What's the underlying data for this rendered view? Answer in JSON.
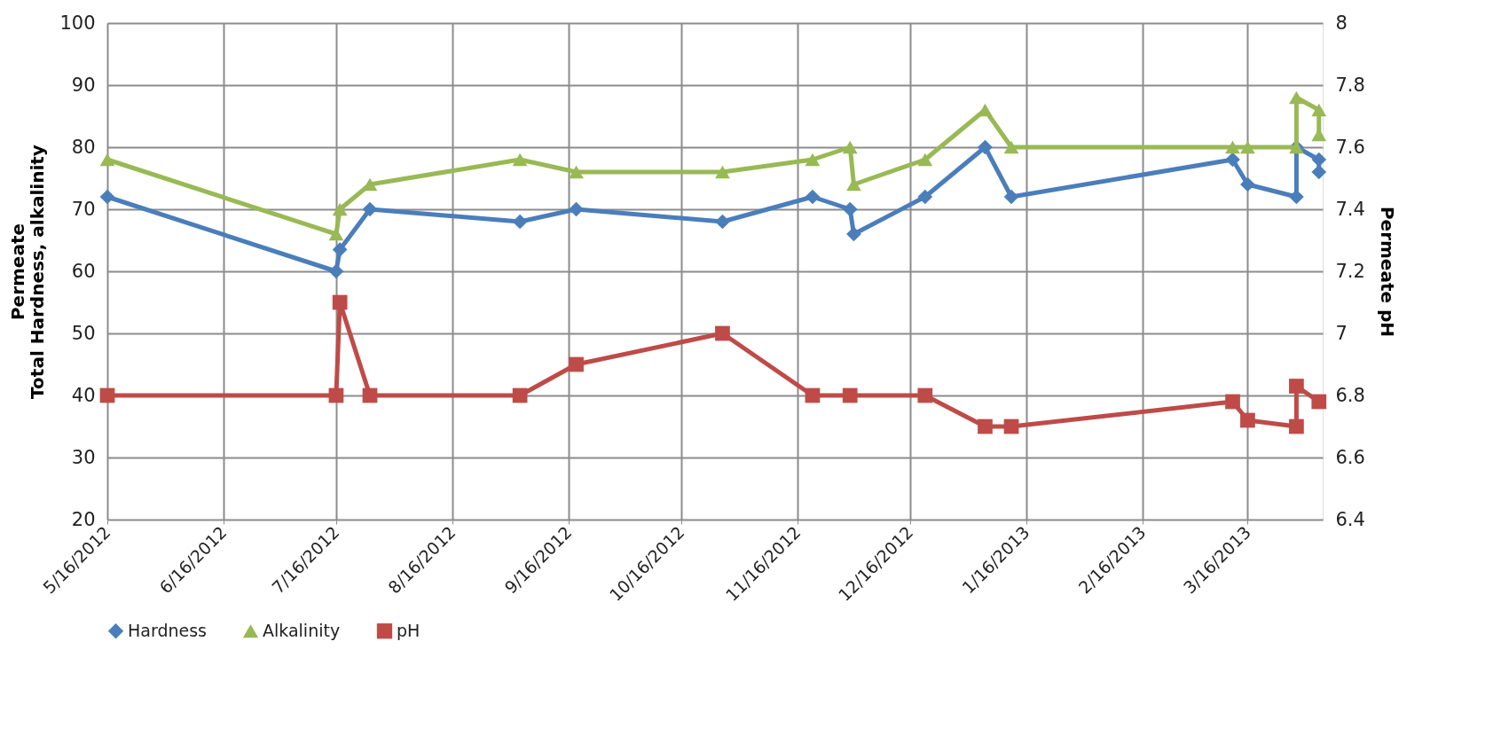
{
  "chart_data": {
    "type": "line",
    "ylabel": "Permeate\nTotal Hardness, alkalinity",
    "y2label": "Permeate pH",
    "x": [
      "2012-05-16",
      "2012-07-16",
      "2012-07-17",
      "2012-07-25",
      "2012-09-03",
      "2012-09-18",
      "2012-10-27",
      "2012-11-20",
      "2012-11-30",
      "2012-12-01",
      "2012-12-20",
      "2013-01-05",
      "2013-01-12",
      "2013-03-12",
      "2013-03-16",
      "2013-03-29",
      "2013-03-29",
      "2013-04-04",
      "2013-04-04"
    ],
    "series": [
      {
        "name": "Hardness",
        "color": "#4a7ebb",
        "marker": "diamond",
        "values": [
          72,
          60,
          63.5,
          70,
          68,
          70,
          68,
          72,
          70,
          66,
          72,
          80,
          72,
          78,
          74,
          72,
          80,
          78,
          76
        ]
      },
      {
        "name": "Alkalinity",
        "color": "#98b954",
        "marker": "triangle",
        "values": [
          78,
          66,
          70,
          74,
          78,
          76,
          76,
          78,
          80,
          74,
          78,
          86,
          80,
          80,
          80,
          80,
          88,
          86,
          82
        ]
      },
      {
        "name": "pH",
        "color": "#be4b48",
        "marker": "square",
        "axis": "y2",
        "values": [
          6.8,
          6.8,
          7.1,
          6.8,
          6.8,
          6.9,
          7.0,
          6.8,
          6.8,
          null,
          6.8,
          6.7,
          6.7,
          6.78,
          6.72,
          6.7,
          6.83,
          6.78,
          null
        ]
      }
    ],
    "xlim": [
      "2012-05-16",
      "2013-04-05"
    ],
    "xticks": [
      {
        "value": "2012-05-16",
        "label": "5/16/2012"
      },
      {
        "value": "2012-06-16",
        "label": "6/16/2012"
      },
      {
        "value": "2012-07-16",
        "label": "7/16/2012"
      },
      {
        "value": "2012-08-16",
        "label": "8/16/2012"
      },
      {
        "value": "2012-09-16",
        "label": "9/16/2012"
      },
      {
        "value": "2012-10-16",
        "label": "10/16/2012"
      },
      {
        "value": "2012-11-16",
        "label": "11/16/2012"
      },
      {
        "value": "2012-12-16",
        "label": "12/16/2012"
      },
      {
        "value": "2013-01-16",
        "label": "1/16/2013"
      },
      {
        "value": "2013-02-16",
        "label": "2/16/2013"
      },
      {
        "value": "2013-03-16",
        "label": "3/16/2013"
      }
    ],
    "ylim": [
      20,
      100
    ],
    "yticks": [
      20,
      30,
      40,
      50,
      60,
      70,
      80,
      90,
      100
    ],
    "y2lim": [
      6.4,
      8
    ],
    "y2ticks": [
      6.4,
      6.6,
      6.8,
      7,
      7.2,
      7.4,
      7.6,
      7.8,
      8
    ],
    "grid": true,
    "legend": "bottom",
    "line_style": "solid"
  }
}
